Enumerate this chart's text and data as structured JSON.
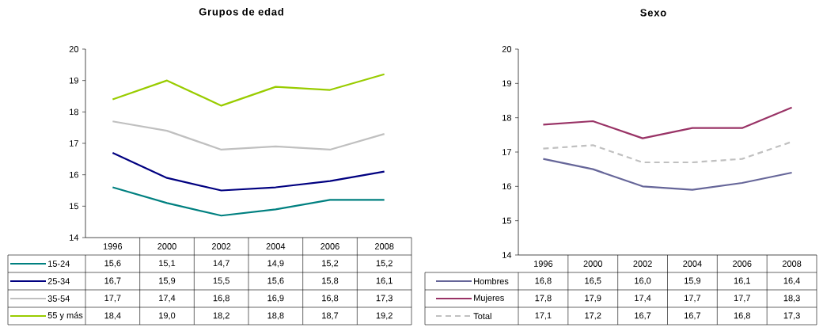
{
  "chart_data": [
    {
      "type": "line",
      "title": "Grupos de edad",
      "categories": [
        "1996",
        "2000",
        "2002",
        "2004",
        "2006",
        "2008"
      ],
      "ylim": [
        14,
        20
      ],
      "yticks": [
        14,
        15,
        16,
        17,
        18,
        19,
        20
      ],
      "legend": "bottom",
      "series": [
        {
          "name": "15-24",
          "color": "#008080",
          "values": [
            15.6,
            15.1,
            14.7,
            14.9,
            15.2,
            15.2
          ],
          "value_labels": [
            "15,6",
            "15,1",
            "14,7",
            "14,9",
            "15,2",
            "15,2"
          ]
        },
        {
          "name": "25-34",
          "color": "#000080",
          "values": [
            16.7,
            15.9,
            15.5,
            15.6,
            15.8,
            16.1
          ],
          "value_labels": [
            "16,7",
            "15,9",
            "15,5",
            "15,6",
            "15,8",
            "16,1"
          ]
        },
        {
          "name": "35-54",
          "color": "#c0c0c0",
          "values": [
            17.7,
            17.4,
            16.8,
            16.9,
            16.8,
            17.3
          ],
          "value_labels": [
            "17,7",
            "17,4",
            "16,8",
            "16,9",
            "16,8",
            "17,3"
          ]
        },
        {
          "name": "55 y más",
          "color": "#99cc00",
          "values": [
            18.4,
            19.0,
            18.2,
            18.8,
            18.7,
            19.2
          ],
          "value_labels": [
            "18,4",
            "19,0",
            "18,2",
            "18,8",
            "18,7",
            "19,2"
          ]
        }
      ]
    },
    {
      "type": "line",
      "title": "Sexo",
      "categories": [
        "1996",
        "2000",
        "2002",
        "2004",
        "2006",
        "2008"
      ],
      "ylim": [
        14,
        20
      ],
      "yticks": [
        14,
        15,
        16,
        17,
        18,
        19,
        20
      ],
      "legend": "bottom",
      "series": [
        {
          "name": "Hombres",
          "color": "#666699",
          "values": [
            16.8,
            16.5,
            16.0,
            15.9,
            16.1,
            16.4
          ],
          "value_labels": [
            "16,8",
            "16,5",
            "16,0",
            "15,9",
            "16,1",
            "16,4"
          ]
        },
        {
          "name": "Mujeres",
          "color": "#993366",
          "values": [
            17.8,
            17.9,
            17.4,
            17.7,
            17.7,
            18.3
          ],
          "value_labels": [
            "17,8",
            "17,9",
            "17,4",
            "17,7",
            "17,7",
            "18,3"
          ]
        },
        {
          "name": "Total",
          "color": "#c0c0c0",
          "line_style": "dashed",
          "values": [
            17.1,
            17.2,
            16.7,
            16.7,
            16.8,
            17.3
          ],
          "value_labels": [
            "17,1",
            "17,2",
            "16,7",
            "16,7",
            "16,8",
            "17,3"
          ]
        }
      ]
    }
  ]
}
